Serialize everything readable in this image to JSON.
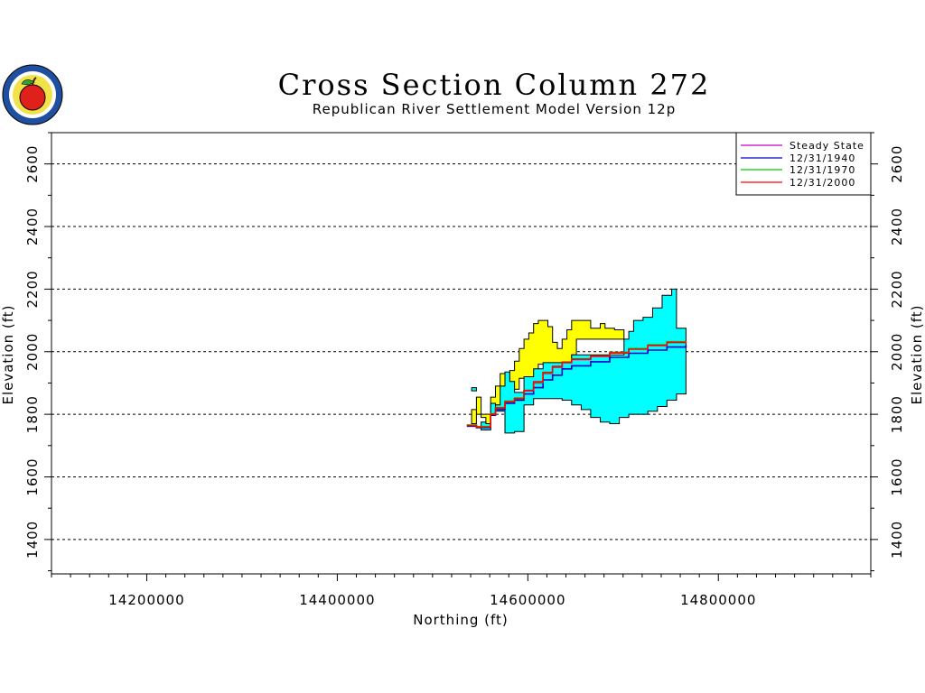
{
  "chart_data": {
    "type": "area",
    "title": "Cross Section Column 272",
    "subtitle": "Republican River Settlement Model Version 12p",
    "xlabel": "Northing (ft)",
    "ylabel": "Elevation (ft)",
    "xlim": [
      14100000,
      14960000
    ],
    "ylim": [
      1290000,
      2700
    ],
    "x_ticks": [
      14200000,
      14400000,
      14600000,
      14800000
    ],
    "x_tick_labels": [
      "14200000",
      "14400000",
      "14600000",
      "14800000"
    ],
    "y_ticks": [
      1400,
      1600,
      1800,
      2000,
      2200,
      2400,
      2600
    ],
    "y_tick_labels": [
      "1400",
      "1600",
      "1800",
      "2000",
      "2200",
      "2400",
      "2600"
    ],
    "grid": true,
    "legend_position": "top-right",
    "legend": [
      "Steady State",
      "12/31/1940",
      "12/31/1970",
      "12/31/2000"
    ],
    "colors": {
      "steady_state": "#cc00cc",
      "y1940": "#0000cc",
      "y1970": "#00cc00",
      "y2000": "#ff0000",
      "yellow_layer": "#ffff00",
      "cyan_layer": "#00ffff"
    },
    "layers": [
      {
        "fill": "#ffff00",
        "outline": [
          [
            14541000,
            1815
          ],
          [
            14541000,
            1770
          ],
          [
            14546000,
            1770
          ],
          [
            14546000,
            1855
          ],
          [
            14551000,
            1855
          ],
          [
            14551000,
            1790
          ],
          [
            14556000,
            1790
          ],
          [
            14556000,
            1760
          ],
          [
            14561000,
            1760
          ],
          [
            14561000,
            1855
          ],
          [
            14566000,
            1855
          ],
          [
            14566000,
            1890
          ],
          [
            14571000,
            1890
          ],
          [
            14571000,
            1930
          ],
          [
            14576000,
            1930
          ],
          [
            14576000,
            1910
          ],
          [
            14581000,
            1910
          ],
          [
            14581000,
            1940
          ],
          [
            14586000,
            1940
          ],
          [
            14586000,
            1970
          ],
          [
            14591000,
            1970
          ],
          [
            14591000,
            2010
          ],
          [
            14596000,
            2010
          ],
          [
            14596000,
            2040
          ],
          [
            14601000,
            2040
          ],
          [
            14601000,
            2060
          ],
          [
            14606000,
            2060
          ],
          [
            14606000,
            2090
          ],
          [
            14611000,
            2090
          ],
          [
            14611000,
            2100
          ],
          [
            14621000,
            2100
          ],
          [
            14621000,
            2080
          ],
          [
            14626000,
            2080
          ],
          [
            14626000,
            2030
          ],
          [
            14631000,
            2030
          ],
          [
            14631000,
            2010
          ],
          [
            14636000,
            2010
          ],
          [
            14636000,
            2040
          ],
          [
            14641000,
            2040
          ],
          [
            14641000,
            2070
          ],
          [
            14646000,
            2070
          ],
          [
            14646000,
            2100
          ],
          [
            14666000,
            2100
          ],
          [
            14666000,
            2075
          ],
          [
            14676000,
            2075
          ],
          [
            14676000,
            2090
          ],
          [
            14681000,
            2090
          ],
          [
            14681000,
            2075
          ],
          [
            14691000,
            2075
          ],
          [
            14691000,
            2070
          ],
          [
            14701000,
            2070
          ],
          [
            14701000,
            2040
          ],
          [
            14651000,
            2040
          ],
          [
            14651000,
            1990
          ],
          [
            14646000,
            1990
          ],
          [
            14646000,
            1960
          ],
          [
            14611000,
            1960
          ],
          [
            14611000,
            1915
          ],
          [
            14591000,
            1915
          ],
          [
            14591000,
            1880
          ],
          [
            14576000,
            1880
          ],
          [
            14576000,
            1830
          ],
          [
            14561000,
            1830
          ],
          [
            14561000,
            1800
          ],
          [
            14546000,
            1800
          ],
          [
            14546000,
            1815
          ]
        ]
      },
      {
        "fill": "#00ffff",
        "outline": [
          [
            14541000,
            1885
          ],
          [
            14541000,
            1875
          ],
          [
            14546000,
            1875
          ],
          [
            14546000,
            1885
          ],
          [
            14541000,
            1885
          ]
        ]
      },
      {
        "fill": "#00ffff",
        "outline": [
          [
            14551000,
            1775
          ],
          [
            14551000,
            1750
          ],
          [
            14561000,
            1750
          ],
          [
            14561000,
            1800
          ],
          [
            14566000,
            1800
          ],
          [
            14566000,
            1830
          ],
          [
            14571000,
            1830
          ],
          [
            14571000,
            1890
          ],
          [
            14576000,
            1890
          ],
          [
            14576000,
            1935
          ],
          [
            14581000,
            1935
          ],
          [
            14581000,
            1905
          ],
          [
            14586000,
            1905
          ],
          [
            14586000,
            1870
          ],
          [
            14596000,
            1870
          ],
          [
            14596000,
            1920
          ],
          [
            14606000,
            1920
          ],
          [
            14606000,
            1945
          ],
          [
            14616000,
            1945
          ],
          [
            14616000,
            1965
          ],
          [
            14646000,
            1965
          ],
          [
            14646000,
            1990
          ],
          [
            14701000,
            1990
          ],
          [
            14701000,
            2040
          ],
          [
            14706000,
            2040
          ],
          [
            14706000,
            2065
          ],
          [
            14711000,
            2065
          ],
          [
            14711000,
            2100
          ],
          [
            14721000,
            2100
          ],
          [
            14721000,
            2110
          ],
          [
            14731000,
            2110
          ],
          [
            14731000,
            2140
          ],
          [
            14741000,
            2140
          ],
          [
            14741000,
            2180
          ],
          [
            14751000,
            2180
          ],
          [
            14751000,
            2200
          ],
          [
            14756000,
            2200
          ],
          [
            14756000,
            2075
          ],
          [
            14766000,
            2075
          ],
          [
            14766000,
            1865
          ],
          [
            14756000,
            1865
          ],
          [
            14756000,
            1845
          ],
          [
            14746000,
            1845
          ],
          [
            14746000,
            1825
          ],
          [
            14736000,
            1825
          ],
          [
            14736000,
            1810
          ],
          [
            14726000,
            1810
          ],
          [
            14726000,
            1800
          ],
          [
            14706000,
            1800
          ],
          [
            14706000,
            1790
          ],
          [
            14696000,
            1790
          ],
          [
            14696000,
            1770
          ],
          [
            14686000,
            1770
          ],
          [
            14686000,
            1775
          ],
          [
            14676000,
            1775
          ],
          [
            14676000,
            1790
          ],
          [
            14666000,
            1790
          ],
          [
            14666000,
            1815
          ],
          [
            14656000,
            1815
          ],
          [
            14656000,
            1830
          ],
          [
            14646000,
            1830
          ],
          [
            14646000,
            1845
          ],
          [
            14636000,
            1845
          ],
          [
            14636000,
            1850
          ],
          [
            14606000,
            1850
          ],
          [
            14606000,
            1830
          ],
          [
            14596000,
            1830
          ],
          [
            14596000,
            1745
          ],
          [
            14586000,
            1745
          ],
          [
            14586000,
            1740
          ],
          [
            14576000,
            1740
          ],
          [
            14576000,
            1810
          ],
          [
            14566000,
            1810
          ],
          [
            14566000,
            1835
          ],
          [
            14561000,
            1835
          ],
          [
            14561000,
            1770
          ],
          [
            14556000,
            1770
          ],
          [
            14556000,
            1775
          ],
          [
            14551000,
            1775
          ]
        ]
      }
    ],
    "series": [
      {
        "name": "Steady State",
        "color": "#cc00cc",
        "x": [
          14536000,
          14546000,
          14556000,
          14561000,
          14566000,
          14576000,
          14586000,
          14596000,
          14606000,
          14616000,
          14626000,
          14636000,
          14646000,
          14666000,
          14686000,
          14706000,
          14726000,
          14746000,
          14766000
        ],
        "y": [
          1765,
          1760,
          1760,
          1800,
          1820,
          1840,
          1850,
          1875,
          1900,
          1930,
          1950,
          1965,
          1975,
          1985,
          1998,
          2010,
          2020,
          2030,
          2030
        ]
      },
      {
        "name": "12/31/1940",
        "color": "#0000cc",
        "x": [
          14536000,
          14546000,
          14556000,
          14561000,
          14566000,
          14576000,
          14586000,
          14596000,
          14606000,
          14616000,
          14626000,
          14636000,
          14646000,
          14666000,
          14686000,
          14706000,
          14726000,
          14746000,
          14766000
        ],
        "y": [
          1762,
          1757,
          1757,
          1797,
          1815,
          1835,
          1845,
          1865,
          1885,
          1910,
          1925,
          1945,
          1955,
          1968,
          1982,
          1995,
          2005,
          2015,
          2022
        ]
      },
      {
        "name": "12/31/1970",
        "color": "#00cc00",
        "x": [
          14536000,
          14546000,
          14556000,
          14561000,
          14566000,
          14576000,
          14586000,
          14596000,
          14606000,
          14616000,
          14626000,
          14636000,
          14646000,
          14666000,
          14686000,
          14706000,
          14726000,
          14746000,
          14766000
        ],
        "y": [
          1766,
          1761,
          1761,
          1802,
          1822,
          1842,
          1852,
          1877,
          1902,
          1932,
          1952,
          1967,
          1977,
          1987,
          1998,
          2010,
          2022,
          2032,
          2034
        ]
      },
      {
        "name": "12/31/2000",
        "color": "#ff0000",
        "x": [
          14536000,
          14546000,
          14556000,
          14561000,
          14566000,
          14576000,
          14586000,
          14596000,
          14606000,
          14616000,
          14626000,
          14636000,
          14646000,
          14666000,
          14686000,
          14706000,
          14726000,
          14746000,
          14766000
        ],
        "y": [
          1764,
          1759,
          1759,
          1800,
          1820,
          1840,
          1850,
          1876,
          1904,
          1934,
          1953,
          1966,
          1976,
          1986,
          1996,
          2008,
          2020,
          2030,
          2026
        ]
      }
    ]
  }
}
